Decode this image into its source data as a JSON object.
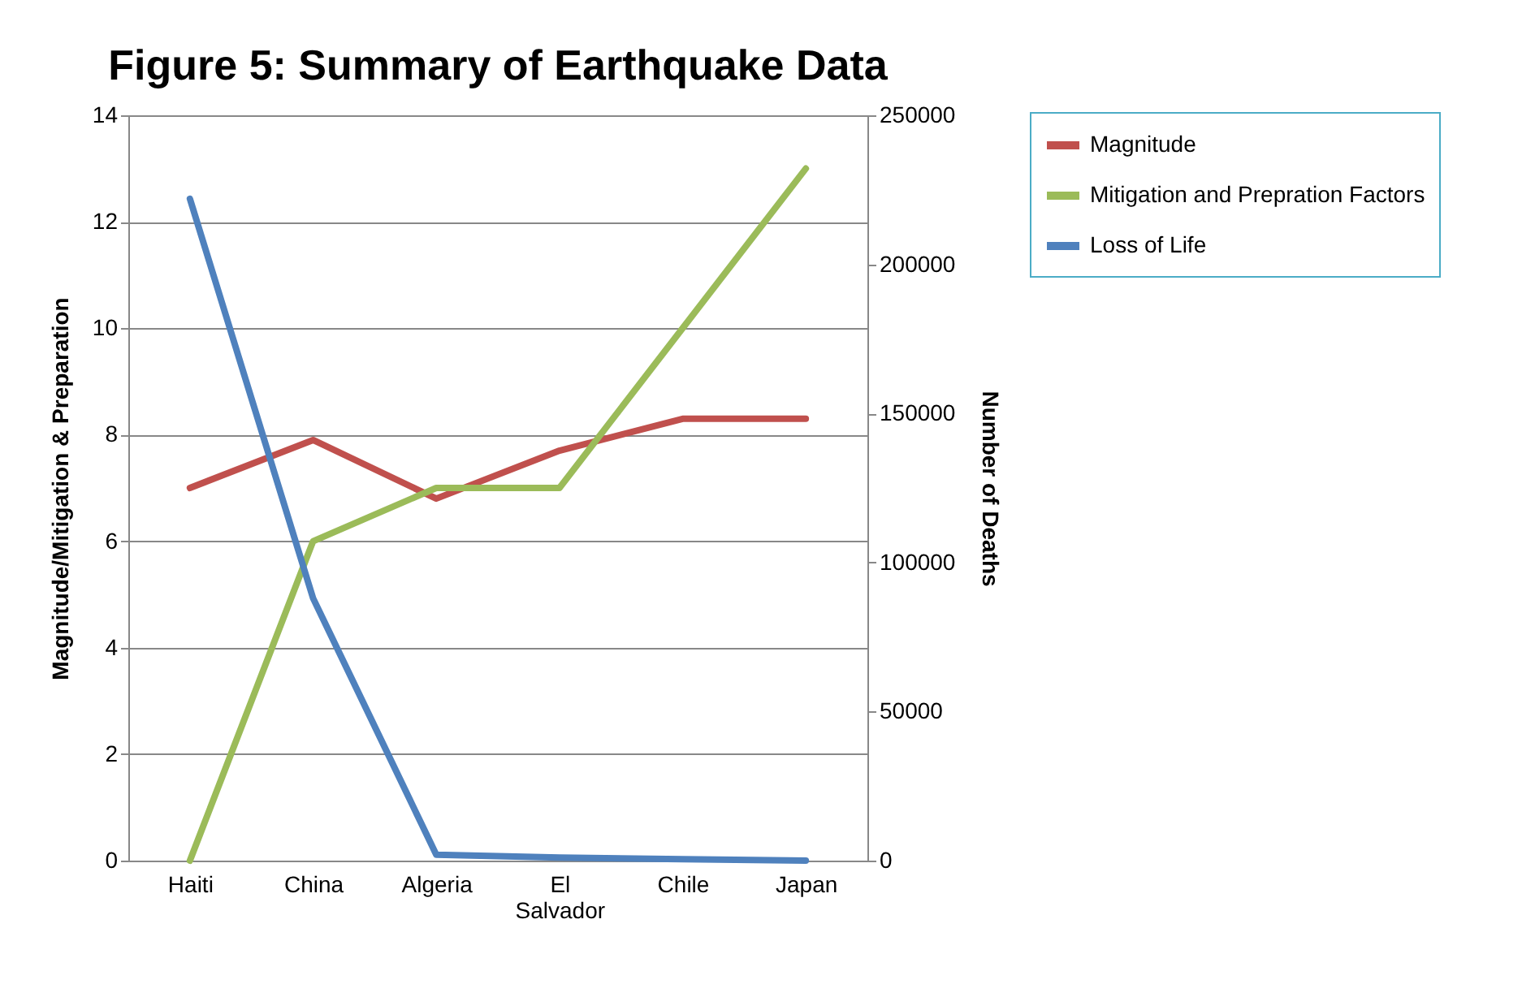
{
  "chart_data": {
    "type": "line",
    "title": "Figure 5: Summary of Earthquake Data",
    "ylabel": "Magnitude/Mitigation  & Preparation",
    "y2label": "Number of Deaths",
    "categories": [
      "Haiti",
      "China",
      "Algeria",
      "El Salvador",
      "Chile",
      "Japan"
    ],
    "series": [
      {
        "name": "Magnitude",
        "color": "#c0504d",
        "values": [
          7.0,
          7.9,
          6.8,
          7.7,
          8.3,
          8.3
        ]
      },
      {
        "name": "Mitigation and Prepration Factors",
        "color": "#9bbb59",
        "values": [
          0,
          6,
          7,
          7,
          10,
          13
        ]
      },
      {
        "name": "Loss of Life",
        "color": "#4f81bd",
        "values": [
          222000,
          88000,
          2000,
          1000,
          500,
          0
        ],
        "axis": "y2"
      }
    ],
    "ylim": [
      0,
      14
    ],
    "yticks": [
      0,
      2,
      4,
      6,
      8,
      10,
      12,
      14
    ],
    "y2lim": [
      0,
      250000
    ],
    "y2ticks": [
      0,
      50000,
      100000,
      150000,
      200000,
      250000
    ],
    "grid": "y",
    "legend": "top right",
    "marker": "none",
    "line_style": "solid"
  }
}
